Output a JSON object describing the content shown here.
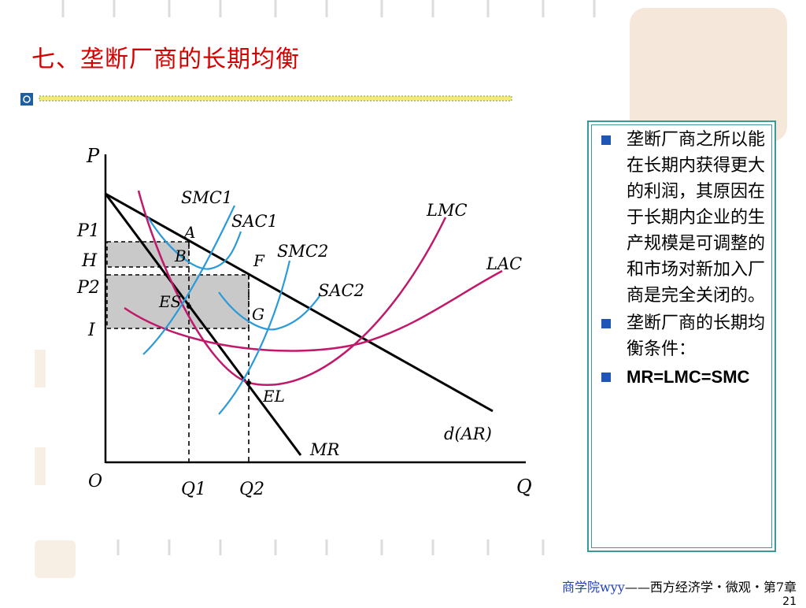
{
  "slide": {
    "title": "七、垄断厂商的长期均衡",
    "bullets": [
      "垄断厂商之所以能在长期内获得更大的利润，其原因在于长期内企业的生产规模是可调整的和市场对新加入厂商是完全关闭的。",
      "垄断厂商的长期均衡条件：",
      "MR=LMC=SMC"
    ],
    "footer": {
      "course": "商学院wyy",
      "rest": "——西方经济学・微观・第7章"
    },
    "page_number": "21"
  },
  "figure": {
    "axis_y": "P",
    "axis_x": "Q",
    "origin": "O",
    "price_levels": [
      "P1",
      "H",
      "P2",
      "I"
    ],
    "quantities": [
      "Q1",
      "Q2"
    ],
    "curves": [
      "SMC1",
      "SAC1",
      "SMC2",
      "SAC2",
      "LMC",
      "LAC",
      "MR",
      "d(AR)"
    ],
    "points": [
      "A",
      "B",
      "F",
      "ES",
      "G",
      "EL"
    ]
  },
  "colors": {
    "title": "#d40000",
    "short_run": "#2a9ad8",
    "long_run": "#c0186a",
    "shade": "#c9c9c9",
    "bullet": "#1f56b5"
  }
}
